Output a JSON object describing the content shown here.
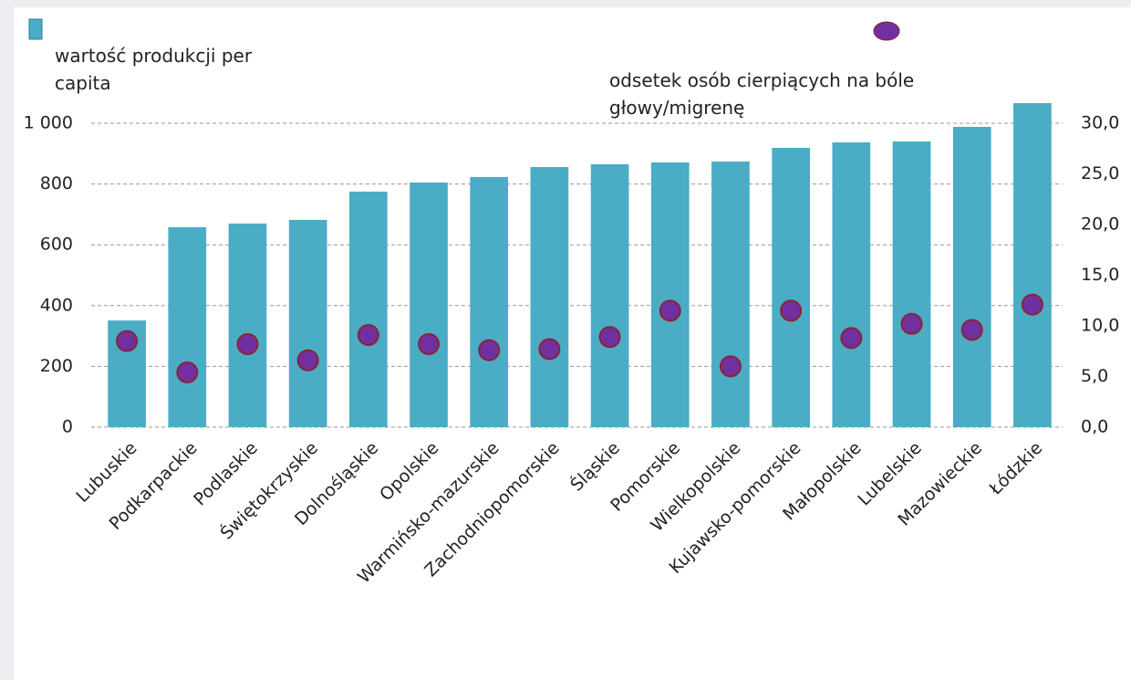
{
  "chart_data": {
    "type": "bar",
    "categories": [
      "Lubuskie",
      "Podkarpackie",
      "Podlaskie",
      "Świętokrzyskie",
      "Dolnośląskie",
      "Opolskie",
      "Warmińsko-mazurskie",
      "Zachodniopomorskie",
      "Śląskie",
      "Pomorskie",
      "Wielkopolskie",
      "Kujawsko-pomorskie",
      "Małopolskie",
      "Lubelskie",
      "Mazowieckie",
      "Łódzkie"
    ],
    "series": [
      {
        "name": "wartość produkcji per capita",
        "type": "bar",
        "color": "#4bacc6",
        "values": [
          351,
          658,
          670,
          682,
          775,
          805,
          823,
          856,
          865,
          871,
          874,
          919,
          937,
          940,
          988,
          1066
        ]
      },
      {
        "name": "odsetek osób cierpiących na bóle głowy/migrenę",
        "type": "scatter",
        "axis": "y2",
        "color": "#7030a0",
        "edgecolor": "#8b2331",
        "values": [
          8.5,
          5.4,
          8.2,
          6.6,
          9.1,
          8.2,
          7.6,
          7.7,
          8.9,
          11.5,
          6.0,
          11.5,
          8.8,
          10.2,
          9.6,
          12.1
        ]
      }
    ],
    "ylim": [
      0,
      1000
    ],
    "yticks": [
      0,
      200,
      400,
      600,
      800,
      {
        "value": 1000,
        "label": "1 000"
      }
    ],
    "y2lim": [
      0,
      30
    ],
    "y2ticks": [
      {
        "value": 0,
        "label": "0,0"
      },
      {
        "value": 5,
        "label": "5,0"
      },
      {
        "value": 10,
        "label": "10,0"
      },
      {
        "value": 15,
        "label": "15,0"
      },
      {
        "value": 20,
        "label": "20,0"
      },
      {
        "value": 25,
        "label": "25,0"
      },
      {
        "value": 30,
        "label": "30,0"
      }
    ],
    "grid": true
  }
}
